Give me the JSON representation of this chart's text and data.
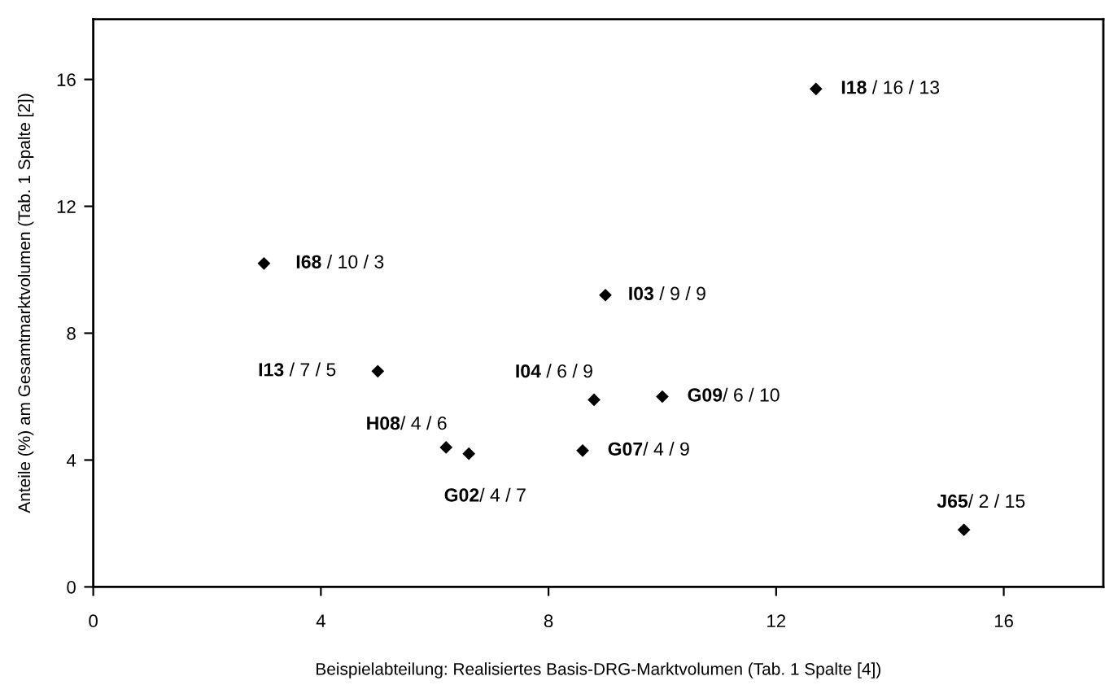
{
  "chart_data": {
    "type": "scatter",
    "xlabel": "Beispielabteilung: Realisiertes Basis-DRG-Marktvolumen (Tab. 1 Spalte [4])",
    "ylabel": "Anteile (%) am Gesamtmarktvolumen (Tab. 1 Spalte [2])",
    "x": [
      12.7,
      3.0,
      9.0,
      5.0,
      8.8,
      10.0,
      6.2,
      6.6,
      8.6,
      15.3
    ],
    "values": [
      15.7,
      10.2,
      9.2,
      6.8,
      5.9,
      6.0,
      4.4,
      4.2,
      4.3,
      1.8
    ],
    "color": "#000000",
    "marker": "diamond",
    "grid": false,
    "xlim": [
      0,
      17.75
    ],
    "xticks": [
      0,
      4,
      8,
      12,
      16
    ],
    "ylim": [
      0,
      17.9
    ],
    "yticks": [
      0,
      4,
      8,
      12,
      16
    ],
    "annotations": [
      {
        "text": "I18 / 16 / 13",
        "x": 12.7,
        "y": 15.7
      },
      {
        "text": "I68 / 10 / 3",
        "x": 3.0,
        "y": 10.2
      },
      {
        "text": "I03 / 9 / 9",
        "x": 9.0,
        "y": 9.2
      },
      {
        "text": "I13 / 7 / 5",
        "x": 5.0,
        "y": 6.8
      },
      {
        "text": "I04 / 6 / 9",
        "x": 8.8,
        "y": 5.9
      },
      {
        "text": "G09/ 6 / 10",
        "x": 10.0,
        "y": 6.0
      },
      {
        "text": "H08/ 4 / 6",
        "x": 6.2,
        "y": 4.4
      },
      {
        "text": "G02/ 4 / 7",
        "x": 6.6,
        "y": 4.2
      },
      {
        "text": "G07/ 4 / 9",
        "x": 8.6,
        "y": 4.3
      },
      {
        "text": "J65/ 2 / 15",
        "x": 15.3,
        "y": 1.8
      }
    ]
  }
}
